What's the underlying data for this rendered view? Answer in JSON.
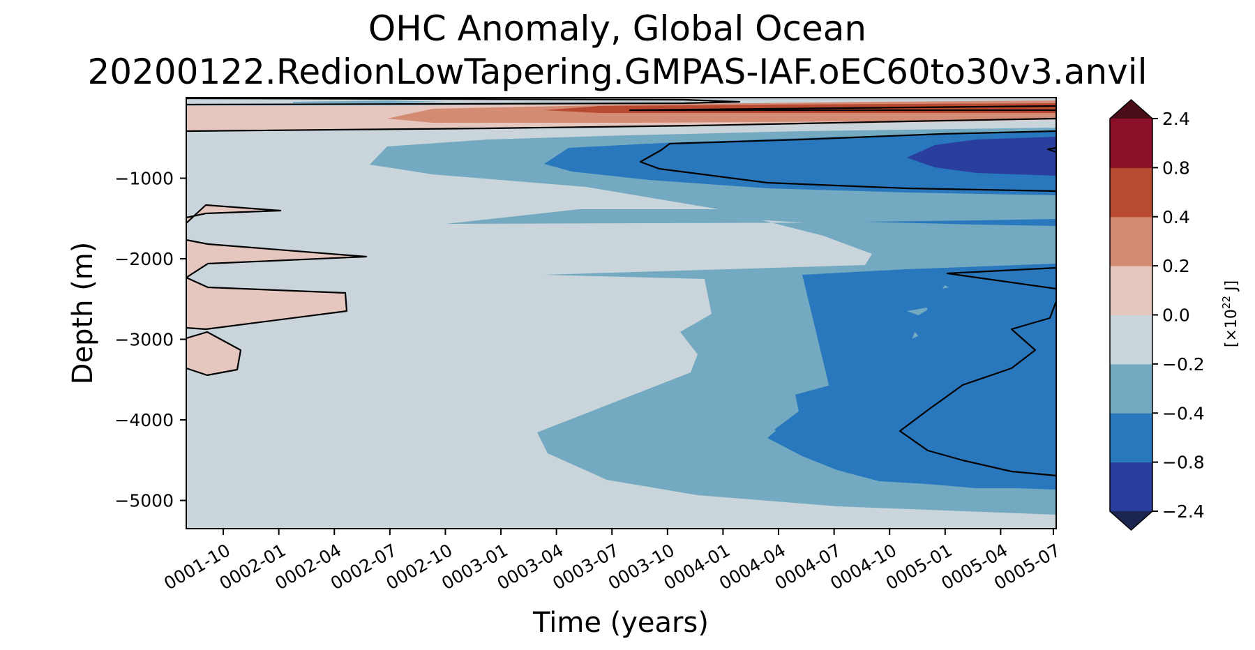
{
  "chart_data": {
    "type": "contourf",
    "title_line1": "OHC Anomaly, Global Ocean",
    "title_line2": "20200122.RedionLowTapering.GMPAS-IAF.oEC60to30v3.anvil",
    "xlabel": "Time (years)",
    "ylabel": "Depth (m)",
    "xlim": [
      "0001-08",
      "0005-07"
    ],
    "xticks": [
      "0001-10",
      "0002-01",
      "0002-04",
      "0002-07",
      "0002-10",
      "0003-01",
      "0003-04",
      "0003-07",
      "0003-10",
      "0004-01",
      "0004-04",
      "0004-07",
      "0004-10",
      "0005-01",
      "0005-04",
      "0005-07"
    ],
    "ylim": [
      -5350,
      0
    ],
    "yticks": [
      -1000,
      -2000,
      -3000,
      -4000,
      -5000
    ],
    "ytick_labels": [
      "−1000",
      "−2000",
      "−3000",
      "−4000",
      "−5000"
    ],
    "colorbar": {
      "label_prefix": "[×10",
      "label_exponent": "22",
      "label_suffix": " J]",
      "levels": [
        -2.4,
        -0.8,
        -0.4,
        -0.2,
        0.0,
        0.2,
        0.4,
        0.8,
        2.4
      ],
      "level_labels": [
        "−2.4",
        "−0.8",
        "−0.4",
        "−0.2",
        "0.0",
        "0.2",
        "0.4",
        "0.8",
        "2.4"
      ],
      "colors": [
        "#2a3f9d",
        "#2978bd",
        "#74aac1",
        "#cad4db",
        "#e6c7c0",
        "#d48b73",
        "#b84a32",
        "#8a0f28"
      ],
      "under_color": "#1b2550",
      "over_color": "#4a0d18",
      "extend": "both"
    },
    "contour_lines": [
      -0.4,
      0.2
    ],
    "approx_regions": [
      {
        "level_band": "0.0 to 0.2",
        "description": "near-surface warm layer and deep warm lobes in year 1"
      },
      {
        "level_band": "0.2 to 0.8",
        "description": "upper ocean warming strengthening after 0003-01"
      },
      {
        "level_band": "-0.8 to -0.2",
        "description": "mid-depth and abyssal cooling growing through 0005-07"
      },
      {
        "level_band": "-2.4 to -0.8",
        "description": "strongest cooling near 800 m depth after 0004-10"
      }
    ]
  }
}
